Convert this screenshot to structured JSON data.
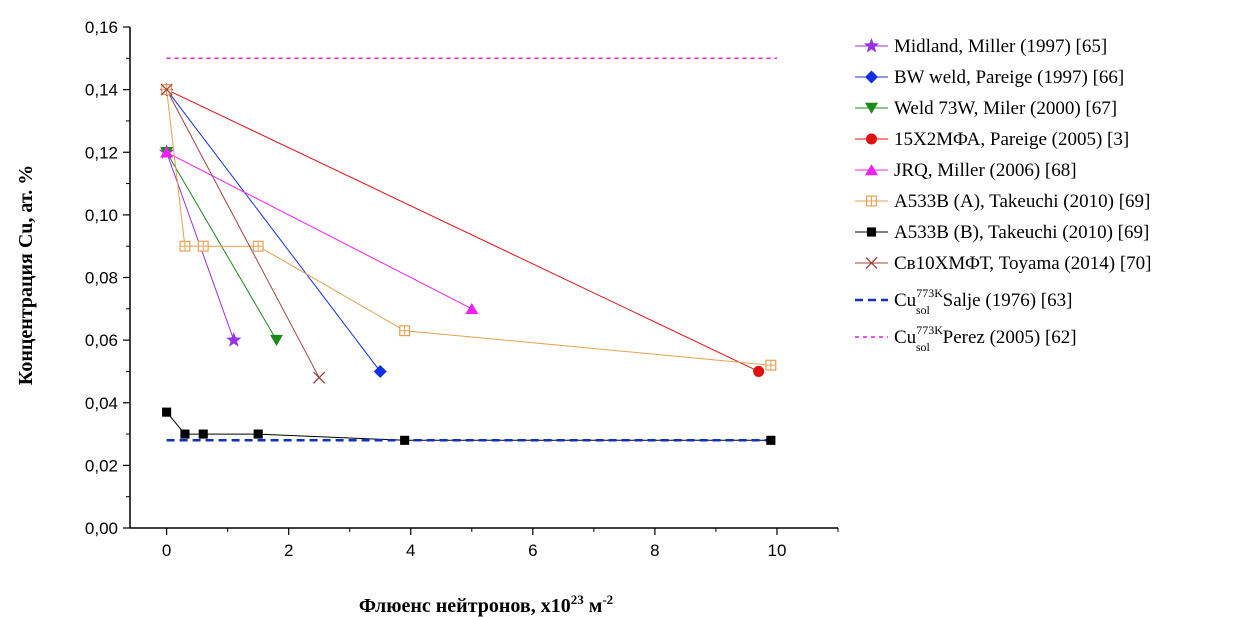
{
  "chart_data": {
    "type": "line",
    "xlabel": "Флюенс нейтронов, x10",
    "xlabel_exp": "23",
    "xlabel_unit": " м",
    "xlabel_unit_exp": "-2",
    "ylabel": "Концентрация Cu, ат. %",
    "xlim": [
      -0.6,
      11
    ],
    "ylim": [
      0,
      0.16
    ],
    "xticks": [
      0,
      2,
      4,
      6,
      8,
      10
    ],
    "yticks": [
      0,
      0.02,
      0.04,
      0.06,
      0.08,
      0.1,
      0.12,
      0.14,
      0.16
    ],
    "xtick_labels": [
      "0",
      "2",
      "4",
      "6",
      "8",
      "10"
    ],
    "ytick_labels": [
      "0,00",
      "0,02",
      "0,04",
      "0,06",
      "0,08",
      "0,10",
      "0,12",
      "0,14",
      "0,16"
    ],
    "grid": false,
    "legend_position": "right",
    "series": [
      {
        "name": "Midland, Miller (1997) [65]",
        "color": "#9b30e0",
        "marker": "star",
        "x": [
          0,
          1.1
        ],
        "y": [
          0.12,
          0.06
        ]
      },
      {
        "name": "BW weld, Pareige (1997) [66]",
        "color": "#1030e0",
        "marker": "diamond",
        "x": [
          0,
          3.5
        ],
        "y": [
          0.14,
          0.05
        ]
      },
      {
        "name": "Weld 73W, Miler (2000) [67]",
        "color": "#1a8c1a",
        "marker": "triangle-down",
        "x": [
          0,
          1.8
        ],
        "y": [
          0.12,
          0.06
        ]
      },
      {
        "name": "15Х2МФА, Pareige (2005) [3]",
        "color": "#e01010",
        "marker": "circle",
        "x": [
          0,
          9.7
        ],
        "y": [
          0.14,
          0.05
        ]
      },
      {
        "name": "JRQ, Miller (2006) [68]",
        "color": "#f020f0",
        "marker": "triangle-up",
        "x": [
          0,
          5.0
        ],
        "y": [
          0.12,
          0.07
        ]
      },
      {
        "name": "A533B (A), Takeuchi (2010) [69]",
        "color": "#e8a050",
        "marker": "square-cross",
        "x": [
          0,
          0.3,
          0.6,
          1.5,
          3.9,
          9.9
        ],
        "y": [
          0.14,
          0.09,
          0.09,
          0.09,
          0.063,
          0.052
        ]
      },
      {
        "name": "A533B (B), Takeuchi (2010) [69]",
        "color": "#000000",
        "marker": "square",
        "x": [
          0,
          0.3,
          0.6,
          1.5,
          3.9,
          9.9
        ],
        "y": [
          0.037,
          0.03,
          0.03,
          0.03,
          0.028,
          0.028
        ]
      },
      {
        "name": "Св10ХМФТ, Toyama (2014) [70]",
        "color": "#a04040",
        "marker": "x",
        "x": [
          0,
          2.5
        ],
        "y": [
          0.14,
          0.048
        ]
      },
      {
        "name": "Cu",
        "name_sup": "773K",
        "name_sub": "sol",
        "name_tail": " Salje (1976) [63]",
        "color": "#1030c0",
        "marker": "none",
        "line": "dashed-bold",
        "x": [
          0,
          10
        ],
        "y": [
          0.028,
          0.028
        ]
      },
      {
        "name": "Cu",
        "name_sup": "773K",
        "name_sub": "sol",
        "name_tail": " Perez (2005) [62]",
        "color": "#e020e0",
        "marker": "none",
        "line": "dashed",
        "x": [
          0,
          10
        ],
        "y": [
          0.15,
          0.15
        ]
      }
    ]
  }
}
